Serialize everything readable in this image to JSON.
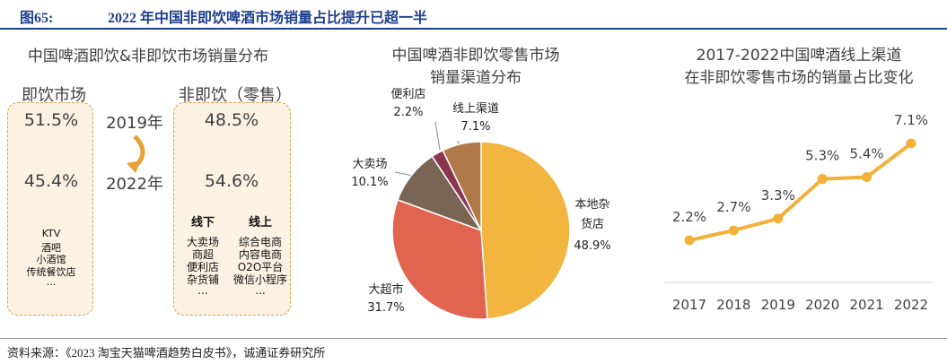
{
  "header": {
    "figure": "图65:",
    "title": "2022 年中国非即饮啤酒市场销量占比提升已超一半"
  },
  "panel1": {
    "title": "中国啤酒即饮&非即饮市场销量分布",
    "left_heading": "即饮市场",
    "right_heading": "非即饮（零售）",
    "years": [
      "2019年",
      "2022年"
    ],
    "left_values": [
      "51.5%",
      "45.4%"
    ],
    "right_values": [
      "48.5%",
      "54.6%"
    ],
    "left_channels": [
      "KTV",
      "酒吧",
      "小酒馆",
      "传统餐饮店",
      "..."
    ],
    "offline_heading": "线下",
    "offline_channels": [
      "大卖场",
      "商超",
      "便利店",
      "杂货铺",
      "..."
    ],
    "online_heading": "线上",
    "online_channels": [
      "综合电商",
      "内容电商",
      "O2O平台",
      "微信小程序",
      "..."
    ]
  },
  "chart_data": [
    {
      "type": "pie",
      "title": [
        "中国啤酒非即饮零售市场",
        "销量渠道分布"
      ],
      "categories": [
        "本地杂货店",
        "大超市",
        "大卖场",
        "便利店",
        "线上渠道"
      ],
      "values": [
        48.9,
        31.7,
        10.1,
        2.2,
        7.1
      ],
      "value_labels": [
        "48.9%",
        "31.7%",
        "10.1%",
        "2.2%",
        "7.1%"
      ],
      "colors": [
        "#f2b540",
        "#e0644f",
        "#7a6453",
        "#8a3550",
        "#b07a48"
      ]
    },
    {
      "type": "line",
      "title": [
        "2017-2022中国啤酒线上渠道",
        "在非即饮零售市场的销量占比变化"
      ],
      "categories": [
        "2017",
        "2018",
        "2019",
        "2020",
        "2021",
        "2022"
      ],
      "values": [
        2.2,
        2.7,
        3.3,
        5.3,
        5.4,
        7.1
      ],
      "value_labels": [
        "2.2%",
        "2.7%",
        "3.3%",
        "5.3%",
        "5.4%",
        "7.1%"
      ],
      "color": "#f2b23a"
    }
  ],
  "source": "资料来源：《2023 淘宝天猫啤酒趋势白皮书》，诚通证券研究所"
}
